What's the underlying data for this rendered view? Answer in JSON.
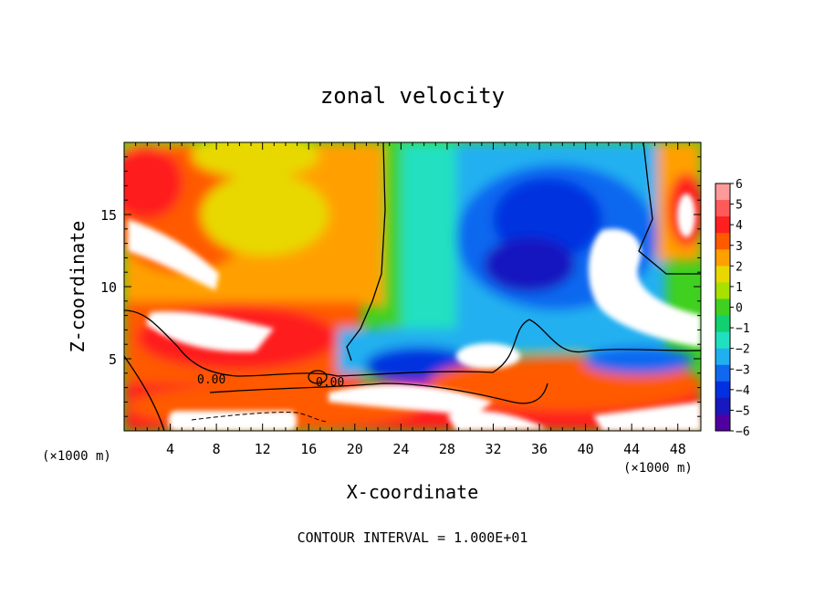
{
  "chart_data": {
    "type": "heatmap",
    "title": "zonal velocity",
    "xlabel": "X-coordinate",
    "ylabel": "Z-coordinate",
    "x_unit": "(×1000 m)",
    "y_unit": "(×1000 m)",
    "xlim": [
      0,
      50
    ],
    "ylim": [
      0,
      20
    ],
    "x_ticks": [
      "4",
      "8",
      "12",
      "16",
      "20",
      "24",
      "28",
      "32",
      "36",
      "40",
      "44",
      "48"
    ],
    "y_ticks": [
      "5",
      "10",
      "15"
    ],
    "footer": "CONTOUR INTERVAL = 1.000E+01",
    "contour_labels": [
      "0.00",
      "0.00"
    ],
    "colorbar": {
      "range": [
        -6,
        6
      ],
      "tick_labels": [
        "6",
        "5",
        "4",
        "3",
        "2",
        "1",
        "0",
        "−1",
        "−2",
        "−3",
        "−4",
        "−5",
        "−6"
      ],
      "colors": [
        "#ff9a9a",
        "#ff5a5a",
        "#ff1f1f",
        "#ff5a00",
        "#ffa000",
        "#e8d800",
        "#a8e000",
        "#40d020",
        "#10d070",
        "#20e0c0",
        "#20b0f0",
        "#1068f0",
        "#0030e0",
        "#1818c0",
        "#5000a0"
      ]
    },
    "value_regions": [
      {
        "x": [
          0,
          20
        ],
        "z": [
          12,
          20
        ],
        "u": 3
      },
      {
        "x": [
          0,
          10
        ],
        "z": [
          13,
          20
        ],
        "u": 4
      },
      {
        "x": [
          8,
          18
        ],
        "z": [
          13,
          18
        ],
        "u": 1.5
      },
      {
        "x": [
          22,
          30
        ],
        "z": [
          10,
          20
        ],
        "u": -1.5
      },
      {
        "x": [
          30,
          46
        ],
        "z": [
          10,
          20
        ],
        "u": -4.5
      },
      {
        "x": [
          46,
          50
        ],
        "z": [
          14,
          20
        ],
        "u": 4
      }
    ]
  }
}
